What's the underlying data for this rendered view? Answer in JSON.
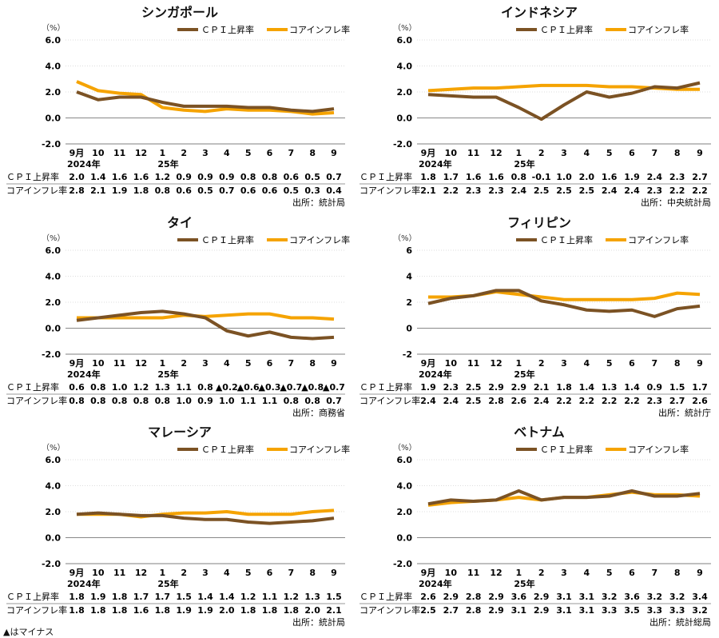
{
  "legend": {
    "cpi": "ＣＰＩ上昇率",
    "core": "コアインフレ率"
  },
  "colors": {
    "cpi": "#7b5224",
    "core": "#f5a300",
    "grid": "#bbbbbb",
    "axis": "#888888"
  },
  "unit": "（%）",
  "months": [
    "9月",
    "10",
    "11",
    "12",
    "1",
    "2",
    "3",
    "4",
    "5",
    "6",
    "7",
    "8",
    "9"
  ],
  "year_labels": {
    "start": "2024年",
    "mid": "25年"
  },
  "row_labels": {
    "cpi": "ＣＰＩ上昇率",
    "core": "コアインフレ率"
  },
  "footnote": "▲はマイナス",
  "chart_data": [
    {
      "type": "line",
      "title": "シンガポール",
      "source": "出所：統計局",
      "ylim": [
        -2,
        6
      ],
      "yticks": [
        "6.0",
        "4.0",
        "2.0",
        "0.0",
        "-2.0"
      ],
      "categories": [
        "9月",
        "10",
        "11",
        "12",
        "1",
        "2",
        "3",
        "4",
        "5",
        "6",
        "7",
        "8",
        "9"
      ],
      "series": [
        {
          "name": "ＣＰＩ上昇率",
          "values": [
            2.0,
            1.4,
            1.6,
            1.6,
            1.2,
            0.9,
            0.9,
            0.9,
            0.8,
            0.8,
            0.6,
            0.5,
            0.7
          ]
        },
        {
          "name": "コアインフレ率",
          "values": [
            2.8,
            2.1,
            1.9,
            1.8,
            0.8,
            0.6,
            0.5,
            0.7,
            0.6,
            0.6,
            0.5,
            0.3,
            0.4
          ]
        }
      ]
    },
    {
      "type": "line",
      "title": "インドネシア",
      "source": "出所：中央統計局",
      "ylim": [
        -2,
        6
      ],
      "yticks": [
        "6.0",
        "4.0",
        "2.0",
        "0.0",
        "-2.0"
      ],
      "categories": [
        "9月",
        "10",
        "11",
        "12",
        "1",
        "2",
        "3",
        "4",
        "5",
        "6",
        "7",
        "8",
        "9"
      ],
      "series": [
        {
          "name": "ＣＰＩ上昇率",
          "values": [
            1.8,
            1.7,
            1.6,
            1.6,
            0.8,
            -0.1,
            1.0,
            2.0,
            1.6,
            1.9,
            2.4,
            2.3,
            2.7
          ]
        },
        {
          "name": "コアインフレ率",
          "values": [
            2.1,
            2.2,
            2.3,
            2.3,
            2.4,
            2.5,
            2.5,
            2.5,
            2.4,
            2.4,
            2.3,
            2.2,
            2.2
          ]
        }
      ]
    },
    {
      "type": "line",
      "title": "タイ",
      "source": "出所：商務省",
      "ylim": [
        -2,
        6
      ],
      "yticks": [
        "6.0",
        "4.0",
        "2.0",
        "0.0",
        "-2.0"
      ],
      "categories": [
        "9月",
        "10",
        "11",
        "12",
        "1",
        "2",
        "3",
        "4",
        "5",
        "6",
        "7",
        "8",
        "9"
      ],
      "series": [
        {
          "name": "ＣＰＩ上昇率",
          "values": [
            0.6,
            0.8,
            1.0,
            1.2,
            1.3,
            1.1,
            0.8,
            -0.2,
            -0.6,
            -0.3,
            -0.7,
            -0.8,
            -0.7
          ],
          "labels": [
            "0.6",
            "0.8",
            "1.0",
            "1.2",
            "1.3",
            "1.1",
            "0.8",
            "▲0.2",
            "▲0.6",
            "▲0.3",
            "▲0.7",
            "▲0.8",
            "▲0.7"
          ]
        },
        {
          "name": "コアインフレ率",
          "values": [
            0.8,
            0.8,
            0.8,
            0.8,
            0.8,
            1.0,
            0.9,
            1.0,
            1.1,
            1.1,
            0.8,
            0.8,
            0.7
          ]
        }
      ]
    },
    {
      "type": "line",
      "title": "フィリピン",
      "source": "出所：統計庁",
      "ylim": [
        -2,
        6
      ],
      "yticks": [
        "6",
        "4",
        "2",
        "0",
        "-2"
      ],
      "categories": [
        "9月",
        "10",
        "11",
        "12",
        "1",
        "2",
        "3",
        "4",
        "5",
        "6",
        "7",
        "8",
        "9"
      ],
      "series": [
        {
          "name": "ＣＰＩ上昇率",
          "values": [
            1.9,
            2.3,
            2.5,
            2.9,
            2.9,
            2.1,
            1.8,
            1.4,
            1.3,
            1.4,
            0.9,
            1.5,
            1.7
          ]
        },
        {
          "name": "コアインフレ率",
          "values": [
            2.4,
            2.4,
            2.5,
            2.8,
            2.6,
            2.4,
            2.2,
            2.2,
            2.2,
            2.2,
            2.3,
            2.7,
            2.6
          ]
        }
      ]
    },
    {
      "type": "line",
      "title": "マレーシア",
      "source": "出所：統計局",
      "ylim": [
        -2,
        6
      ],
      "yticks": [
        "6.0",
        "4.0",
        "2.0",
        "0.0",
        "-2.0"
      ],
      "categories": [
        "9月",
        "10",
        "11",
        "12",
        "1",
        "2",
        "3",
        "4",
        "5",
        "6",
        "7",
        "8",
        "9"
      ],
      "series": [
        {
          "name": "ＣＰＩ上昇率",
          "values": [
            1.8,
            1.9,
            1.8,
            1.7,
            1.7,
            1.5,
            1.4,
            1.4,
            1.2,
            1.1,
            1.2,
            1.3,
            1.5
          ]
        },
        {
          "name": "コアインフレ率",
          "values": [
            1.8,
            1.8,
            1.8,
            1.6,
            1.8,
            1.9,
            1.9,
            2.0,
            1.8,
            1.8,
            1.8,
            2.0,
            2.1
          ]
        }
      ]
    },
    {
      "type": "line",
      "title": "ベトナム",
      "source": "出所：統計総局",
      "ylim": [
        -2,
        6
      ],
      "yticks": [
        "6.0",
        "4.0",
        "2.0",
        "0.0",
        "-2.0"
      ],
      "categories": [
        "9月",
        "10",
        "11",
        "12",
        "1",
        "2",
        "3",
        "4",
        "5",
        "6",
        "7",
        "8",
        "9"
      ],
      "series": [
        {
          "name": "ＣＰＩ上昇率",
          "values": [
            2.6,
            2.9,
            2.8,
            2.9,
            3.6,
            2.9,
            3.1,
            3.1,
            3.2,
            3.6,
            3.2,
            3.2,
            3.4
          ]
        },
        {
          "name": "コアインフレ率",
          "values": [
            2.5,
            2.7,
            2.8,
            2.9,
            3.1,
            2.9,
            3.1,
            3.1,
            3.3,
            3.5,
            3.3,
            3.3,
            3.2
          ]
        }
      ]
    }
  ]
}
